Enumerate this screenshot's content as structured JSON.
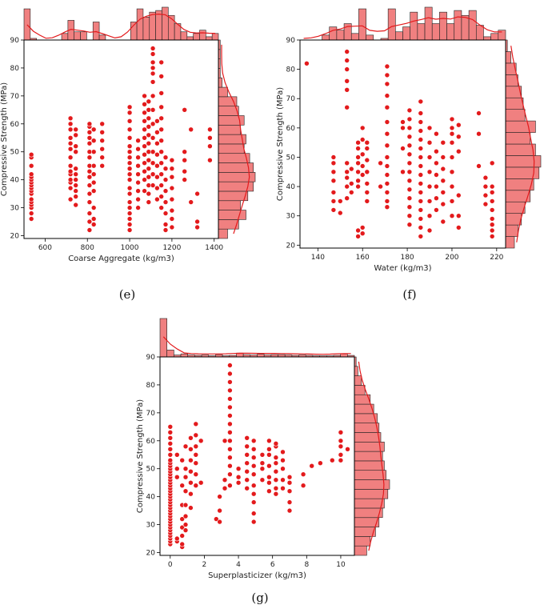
{
  "chart_data": [
    {
      "id": "e",
      "type": "scatter",
      "caption": "(e)",
      "xlabel": "Coarse Aggregate (kg/m3)",
      "ylabel": "Compressive Strength (MPa)",
      "xlim": [
        500,
        1420
      ],
      "ylim": [
        19,
        90
      ],
      "xticks": [
        600,
        800,
        1000,
        1200,
        1400
      ],
      "yticks": [
        20,
        30,
        40,
        50,
        60,
        70,
        80,
        90
      ],
      "point_color": "#e31a1c",
      "columns": [
        {
          "x": 535,
          "ys": [
            26,
            28,
            30,
            31,
            32,
            33,
            35,
            36,
            37,
            38,
            39,
            40,
            41,
            42,
            45,
            48,
            49
          ]
        },
        {
          "x": 720,
          "ys": [
            33,
            37,
            39,
            40,
            42,
            43,
            45,
            48,
            51,
            53,
            55,
            58,
            60,
            62
          ]
        },
        {
          "x": 745,
          "ys": [
            31,
            34,
            36,
            38,
            40,
            42,
            44,
            50,
            52,
            56,
            58
          ]
        },
        {
          "x": 810,
          "ys": [
            22,
            25,
            28,
            32,
            35,
            38,
            41,
            43,
            45,
            48,
            50,
            53,
            55,
            57,
            59,
            60
          ]
        },
        {
          "x": 830,
          "ys": [
            24,
            26,
            30,
            36,
            39,
            42,
            45,
            50,
            54,
            58
          ]
        },
        {
          "x": 870,
          "ys": [
            45,
            48,
            51,
            54,
            57,
            60
          ]
        },
        {
          "x": 1000,
          "ys": [
            22,
            24,
            26,
            28,
            30,
            32,
            35,
            37,
            40,
            42,
            44,
            46,
            48,
            50,
            52,
            55,
            58,
            61,
            64,
            66
          ]
        },
        {
          "x": 1040,
          "ys": [
            30,
            33,
            36,
            39,
            42,
            45,
            48,
            51,
            54
          ]
        },
        {
          "x": 1070,
          "ys": [
            36,
            40,
            43,
            46,
            49,
            52,
            55,
            58,
            61,
            64,
            67,
            70
          ]
        },
        {
          "x": 1090,
          "ys": [
            32,
            35,
            38,
            41,
            44,
            47,
            50,
            53,
            56,
            59,
            62,
            65,
            68
          ]
        },
        {
          "x": 1110,
          "ys": [
            38,
            42,
            46,
            50,
            55,
            60,
            65,
            70,
            75,
            78,
            80,
            82,
            85,
            87
          ]
        },
        {
          "x": 1130,
          "ys": [
            33,
            37,
            41,
            45,
            49,
            53,
            57,
            61
          ]
        },
        {
          "x": 1150,
          "ys": [
            30,
            34,
            38,
            42,
            46,
            50,
            54,
            58,
            62,
            66,
            71,
            77,
            82
          ]
        },
        {
          "x": 1170,
          "ys": [
            22,
            24,
            28,
            32,
            36,
            40,
            44,
            48
          ]
        },
        {
          "x": 1200,
          "ys": [
            23,
            26,
            29,
            33,
            37,
            41,
            44,
            47
          ]
        },
        {
          "x": 1260,
          "ys": [
            40,
            43,
            47,
            50,
            65
          ]
        },
        {
          "x": 1290,
          "ys": [
            32,
            58
          ]
        },
        {
          "x": 1320,
          "ys": [
            23,
            25,
            35
          ]
        },
        {
          "x": 1380,
          "ys": [
            47,
            52,
            55,
            58
          ]
        }
      ],
      "top_hist": [
        0.95,
        0.05,
        0,
        0,
        0,
        0,
        0.2,
        0.6,
        0.25,
        0.25,
        0,
        0.55,
        0.15,
        0,
        0,
        0,
        0,
        0.55,
        0.95,
        0.7,
        0.85,
        0.9,
        1.0,
        0.75,
        0.5,
        0.25,
        0.1,
        0.2,
        0.3,
        0.1,
        0.2
      ],
      "right_hist": [
        0.25,
        0.55,
        0.75,
        0.6,
        0.8,
        0.95,
        1.0,
        0.95,
        0.85,
        0.7,
        0.75,
        0.6,
        0.7,
        0.55,
        0.5,
        0.25,
        0.1,
        0.05,
        0.05,
        0.05,
        0.05
      ]
    },
    {
      "id": "f",
      "type": "scatter",
      "caption": "(f)",
      "xlabel": "Water (kg/m3)",
      "ylabel": "Compressive Strength (MPa)",
      "xlim": [
        132,
        224
      ],
      "ylim": [
        19,
        90
      ],
      "xticks": [
        140,
        160,
        180,
        200,
        220
      ],
      "yticks": [
        20,
        30,
        40,
        50,
        60,
        70,
        80,
        90
      ],
      "point_color": "#e31a1c",
      "columns": [
        {
          "x": 135,
          "ys": [
            82
          ]
        },
        {
          "x": 147,
          "ys": [
            32,
            35,
            38,
            42,
            45,
            48,
            50
          ]
        },
        {
          "x": 150,
          "ys": [
            31,
            35
          ]
        },
        {
          "x": 153,
          "ys": [
            36,
            40,
            43,
            45,
            48,
            67,
            73,
            76,
            80,
            83,
            86
          ]
        },
        {
          "x": 155,
          "ys": [
            38,
            41,
            46
          ]
        },
        {
          "x": 158,
          "ys": [
            23,
            25,
            40,
            42,
            45,
            48,
            50,
            53,
            55
          ]
        },
        {
          "x": 160,
          "ys": [
            24,
            26,
            44,
            47,
            51,
            56,
            60
          ]
        },
        {
          "x": 162,
          "ys": [
            35,
            38,
            41,
            45,
            49,
            53,
            55
          ]
        },
        {
          "x": 168,
          "ys": [
            40,
            48
          ]
        },
        {
          "x": 171,
          "ys": [
            33,
            35,
            38,
            41,
            44,
            47,
            50,
            54,
            58,
            62,
            67,
            71,
            75,
            78,
            81
          ]
        },
        {
          "x": 178,
          "ys": [
            45,
            53,
            60,
            62
          ]
        },
        {
          "x": 181,
          "ys": [
            27,
            30,
            33,
            36,
            39,
            42,
            45,
            48,
            51,
            54,
            57,
            60,
            63,
            66
          ]
        },
        {
          "x": 186,
          "ys": [
            23,
            26,
            29,
            32,
            35,
            38,
            41,
            44,
            47,
            50,
            53,
            56,
            59,
            62,
            65,
            69
          ]
        },
        {
          "x": 190,
          "ys": [
            25,
            30,
            35,
            40,
            45,
            50,
            55,
            60
          ]
        },
        {
          "x": 193,
          "ys": [
            32,
            36,
            40,
            44,
            48,
            52,
            58
          ]
        },
        {
          "x": 196,
          "ys": [
            28,
            34,
            38,
            42,
            46,
            50,
            55
          ]
        },
        {
          "x": 200,
          "ys": [
            30,
            35,
            40,
            45,
            50,
            55,
            58,
            60,
            63
          ]
        },
        {
          "x": 203,
          "ys": [
            26,
            30,
            37,
            52,
            57,
            61
          ]
        },
        {
          "x": 212,
          "ys": [
            47,
            58,
            65
          ]
        },
        {
          "x": 215,
          "ys": [
            34,
            37,
            40,
            43
          ]
        },
        {
          "x": 218,
          "ys": [
            23,
            25,
            27,
            29,
            32,
            35,
            38,
            40,
            48
          ]
        }
      ],
      "top_hist": [
        0,
        0,
        0,
        0.15,
        0.4,
        0.3,
        0.5,
        0.2,
        0.95,
        0.15,
        0,
        0.05,
        0.95,
        0.25,
        0.4,
        0.85,
        0.5,
        1.0,
        0.5,
        0.85,
        0.5,
        0.9,
        0.75,
        0.9,
        0.45,
        0.1,
        0.2,
        0.3
      ],
      "right_hist": [
        0.25,
        0.35,
        0.45,
        0.55,
        0.7,
        0.8,
        0.95,
        1.0,
        0.85,
        0.7,
        0.85,
        0.55,
        0.5,
        0.45,
        0.35,
        0.3,
        0.15,
        0.05
      ]
    },
    {
      "id": "g",
      "type": "scatter",
      "caption": "(g)",
      "xlabel": "Superplasticizer (kg/m3)",
      "ylabel": "Compressive Strength (MPa)",
      "xlim": [
        -0.6,
        10.8
      ],
      "ylim": [
        19,
        90
      ],
      "xticks": [
        0,
        2,
        4,
        6,
        8,
        10
      ],
      "yticks": [
        20,
        30,
        40,
        50,
        60,
        70,
        80,
        90
      ],
      "point_color": "#e31a1c",
      "columns": [
        {
          "x": 0.0,
          "ys": [
            23,
            24,
            25,
            26,
            27,
            28,
            29,
            30,
            31,
            32,
            33,
            34,
            35,
            36,
            37,
            38,
            39,
            40,
            41,
            42,
            43,
            44,
            45,
            46,
            47,
            48,
            49,
            50,
            51,
            52,
            53,
            55,
            57,
            59,
            61,
            63,
            65
          ]
        },
        {
          "x": 0.4,
          "ys": [
            24,
            25,
            47,
            50,
            55
          ]
        },
        {
          "x": 0.7,
          "ys": [
            22,
            23,
            26,
            29,
            32,
            37,
            44,
            53
          ]
        },
        {
          "x": 0.9,
          "ys": [
            28,
            30,
            33,
            37,
            42,
            47,
            50,
            58
          ]
        },
        {
          "x": 1.2,
          "ys": [
            36,
            41,
            45,
            49,
            53,
            57,
            61
          ]
        },
        {
          "x": 1.5,
          "ys": [
            44,
            48,
            52,
            55,
            58,
            62,
            66
          ]
        },
        {
          "x": 1.8,
          "ys": [
            45,
            60
          ]
        },
        {
          "x": 2.7,
          "ys": [
            32
          ]
        },
        {
          "x": 2.9,
          "ys": [
            31,
            35,
            40
          ]
        },
        {
          "x": 3.2,
          "ys": [
            43,
            46,
            60
          ]
        },
        {
          "x": 3.5,
          "ys": [
            44,
            48,
            51,
            54,
            57,
            60,
            63,
            66,
            69,
            72,
            75,
            78,
            81,
            84,
            87
          ]
        },
        {
          "x": 4.0,
          "ys": [
            45,
            47,
            50
          ]
        },
        {
          "x": 4.5,
          "ys": [
            43,
            46,
            49,
            52,
            55,
            58,
            61
          ]
        },
        {
          "x": 4.9,
          "ys": [
            31,
            34,
            38,
            41,
            44,
            48,
            51,
            54,
            57,
            60
          ]
        },
        {
          "x": 5.4,
          "ys": [
            46,
            50,
            52,
            55
          ]
        },
        {
          "x": 5.8,
          "ys": [
            42,
            45,
            47,
            51,
            55,
            57,
            60
          ]
        },
        {
          "x": 6.2,
          "ys": [
            41,
            43,
            46,
            49,
            52,
            54,
            58,
            59
          ]
        },
        {
          "x": 6.6,
          "ys": [
            43,
            46,
            50,
            53,
            56
          ]
        },
        {
          "x": 7.0,
          "ys": [
            35,
            38,
            42,
            45,
            47
          ]
        },
        {
          "x": 7.8,
          "ys": [
            44,
            48
          ]
        },
        {
          "x": 8.3,
          "ys": [
            51
          ]
        },
        {
          "x": 8.8,
          "ys": [
            52
          ]
        },
        {
          "x": 9.5,
          "ys": [
            53
          ]
        },
        {
          "x": 10.0,
          "ys": [
            53,
            55,
            58,
            60,
            63
          ]
        },
        {
          "x": 10.4,
          "ys": [
            57
          ]
        }
      ],
      "top_hist": [
        1.0,
        0.18,
        0.05,
        0.08,
        0.05,
        0.04,
        0.05,
        0.03,
        0.06,
        0.03,
        0.04,
        0.1,
        0.06,
        0.05,
        0.07,
        0.05,
        0.06,
        0.06,
        0.05,
        0.04,
        0.05,
        0.04,
        0.03,
        0.03,
        0.03,
        0.04,
        0.08,
        0.04
      ],
      "right_hist": [
        0.35,
        0.45,
        0.6,
        0.7,
        0.8,
        0.85,
        0.95,
        1.0,
        0.9,
        0.85,
        0.8,
        0.85,
        0.75,
        0.7,
        0.65,
        0.55,
        0.45,
        0.3,
        0.2,
        0.1,
        0.05
      ]
    }
  ]
}
